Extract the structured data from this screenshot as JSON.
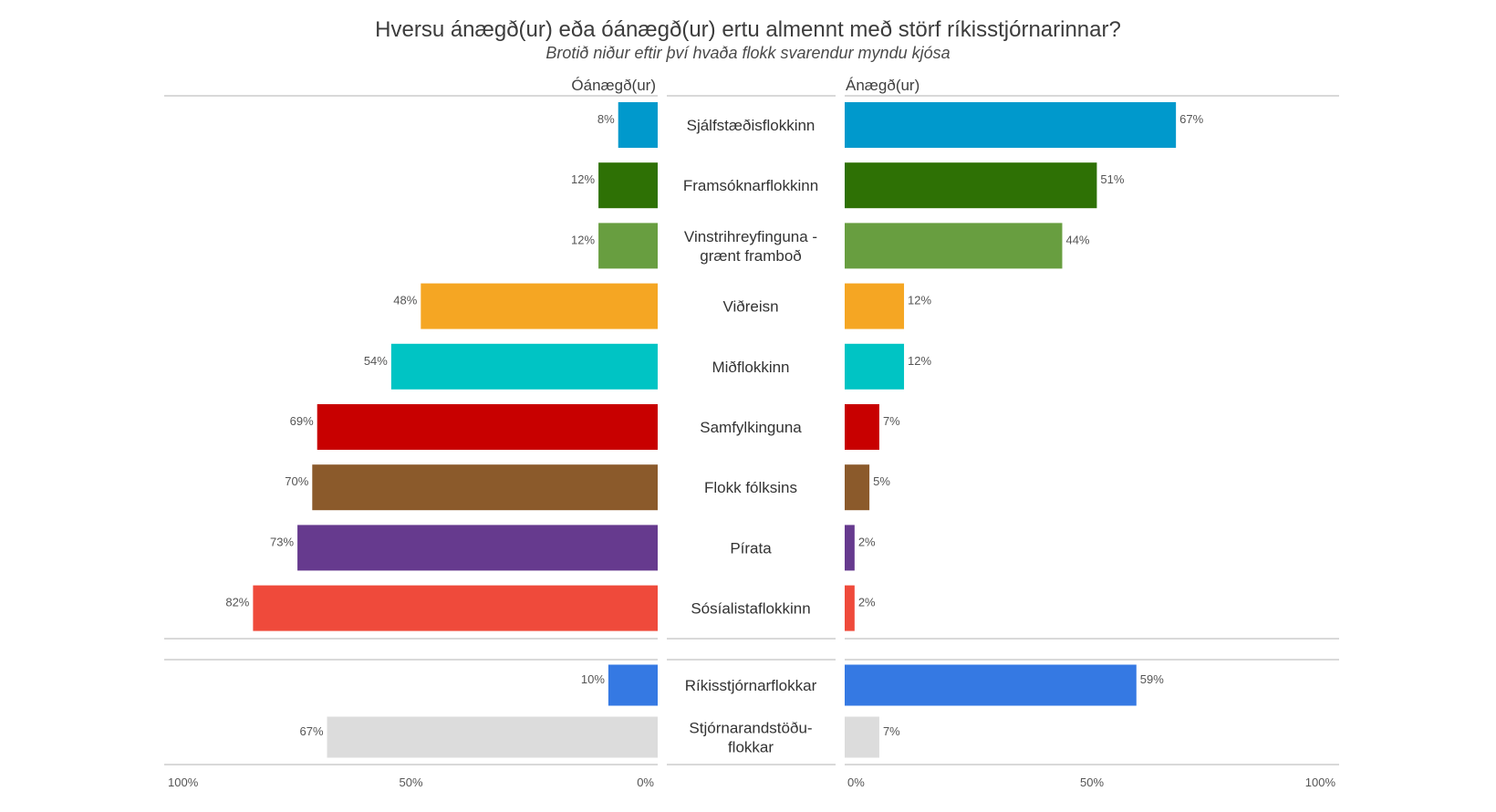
{
  "chart_data": {
    "type": "bar",
    "title": "Hversu ánægð(ur) eða óánægð(ur) ertu almennt með störf ríkisstjórnarinnar?",
    "subtitle": "Brotið niður eftir því hvaða flokk svarendur myndu kjósa",
    "left_header": "Óánægð(ur)",
    "right_header": "Ánægð(ur)",
    "left_ticks": [
      "100%",
      "50%",
      "0%"
    ],
    "right_ticks": [
      "0%",
      "50%",
      "100%"
    ],
    "xlim": [
      0,
      100
    ],
    "groups": [
      {
        "rows": [
          {
            "label": [
              "Sjálfstæðisflokkinn"
            ],
            "dissatisfied": 8,
            "satisfied": 67,
            "color": "#0099cc"
          },
          {
            "label": [
              "Framsóknarflokkinn"
            ],
            "dissatisfied": 12,
            "satisfied": 51,
            "color": "#2e7105"
          },
          {
            "label": [
              "Vinstrihreyfinguna -",
              "grænt framboð"
            ],
            "dissatisfied": 12,
            "satisfied": 44,
            "color": "#689e40"
          },
          {
            "label": [
              "Viðreisn"
            ],
            "dissatisfied": 48,
            "satisfied": 12,
            "color": "#f5a623"
          },
          {
            "label": [
              "Miðflokkinn"
            ],
            "dissatisfied": 54,
            "satisfied": 12,
            "color": "#00c4c4"
          },
          {
            "label": [
              "Samfylkinguna"
            ],
            "dissatisfied": 69,
            "satisfied": 7,
            "color": "#c80000"
          },
          {
            "label": [
              "Flokk fólksins"
            ],
            "dissatisfied": 70,
            "satisfied": 5,
            "color": "#8b5a2b"
          },
          {
            "label": [
              "Pírata"
            ],
            "dissatisfied": 73,
            "satisfied": 2,
            "color": "#663a8e"
          },
          {
            "label": [
              "Sósíalistaflokkinn"
            ],
            "dissatisfied": 82,
            "satisfied": 2,
            "color": "#ef4a3b"
          }
        ]
      },
      {
        "rows": [
          {
            "label": [
              "Ríkisstjórnarflokkar"
            ],
            "dissatisfied": 10,
            "satisfied": 59,
            "color": "#3579e3"
          },
          {
            "label": [
              "Stjórnarandstöðu-",
              "flokkar"
            ],
            "dissatisfied": 67,
            "satisfied": 7,
            "color": "#dcdcdc"
          }
        ]
      }
    ]
  }
}
